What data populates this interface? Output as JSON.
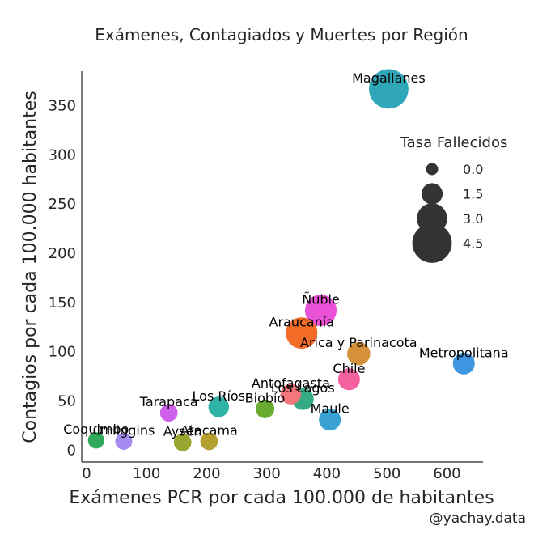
{
  "chart_data": {
    "type": "scatter",
    "title": "Exámenes, Contagiados y Muertes por Región",
    "xlabel": "Exámenes PCR por cada 100.000 de habitantes",
    "ylabel": "Contagios por cada 100.000 habitantes",
    "xlim": [
      -8,
      660
    ],
    "ylim": [
      -12,
      385
    ],
    "xticks": [
      0,
      100,
      200,
      300,
      400,
      500,
      600
    ],
    "yticks": [
      0,
      50,
      100,
      150,
      200,
      250,
      300,
      350
    ],
    "xtick_labels": [
      "0",
      "100",
      "200",
      "300",
      "400",
      "500",
      "600"
    ],
    "ytick_labels": [
      "0",
      "50",
      "100",
      "150",
      "200",
      "250",
      "300",
      "350"
    ],
    "size_legend": {
      "title": "Tasa Fallecidos",
      "entries": [
        {
          "label": "0.0",
          "value": 0.0
        },
        {
          "label": "1.5",
          "value": 1.5
        },
        {
          "label": "3.0",
          "value": 3.0
        },
        {
          "label": "4.5",
          "value": 4.5
        }
      ]
    },
    "points": [
      {
        "name": "Magallanes",
        "x": 503,
        "y": 367,
        "size": 4.5,
        "color": "#30a7b8"
      },
      {
        "name": "Ñuble",
        "x": 390,
        "y": 142,
        "size": 3.2,
        "color": "#e952d6"
      },
      {
        "name": "Araucanía",
        "x": 358,
        "y": 119,
        "size": 3.2,
        "color": "#f46d28"
      },
      {
        "name": "Arica y Parinacota",
        "x": 453,
        "y": 98,
        "size": 1.8,
        "color": "#d5913a"
      },
      {
        "name": "Metropolitana",
        "x": 628,
        "y": 88,
        "size": 1.6,
        "color": "#3c97e0"
      },
      {
        "name": "Chile",
        "x": 437,
        "y": 72,
        "size": 1.6,
        "color": "#f5609e"
      },
      {
        "name": "Antofagasta",
        "x": 340,
        "y": 57,
        "size": 1.4,
        "color": "#f4777b"
      },
      {
        "name": "Los Lagos",
        "x": 360,
        "y": 52,
        "size": 1.6,
        "color": "#34ab84"
      },
      {
        "name": "Biobío",
        "x": 297,
        "y": 42,
        "size": 1.1,
        "color": "#6aac32"
      },
      {
        "name": "Los Ríos",
        "x": 220,
        "y": 44,
        "size": 1.4,
        "color": "#2fb3a5"
      },
      {
        "name": "Maule",
        "x": 405,
        "y": 31,
        "size": 1.6,
        "color": "#3aa2d2"
      },
      {
        "name": "Tarapacá",
        "x": 137,
        "y": 38,
        "size": 0.9,
        "color": "#cd60e9"
      },
      {
        "name": "Coquimbo",
        "x": 16,
        "y": 10,
        "size": 0.7,
        "color": "#30aa5a"
      },
      {
        "name": "O'Higgins",
        "x": 62,
        "y": 9,
        "size": 0.8,
        "color": "#a38bef"
      },
      {
        "name": "Aysén",
        "x": 160,
        "y": 8,
        "size": 0.9,
        "color": "#9aa632"
      },
      {
        "name": "Atacama",
        "x": 204,
        "y": 9,
        "size": 0.9,
        "color": "#b4a032"
      }
    ]
  },
  "credit": "@yachay.data"
}
